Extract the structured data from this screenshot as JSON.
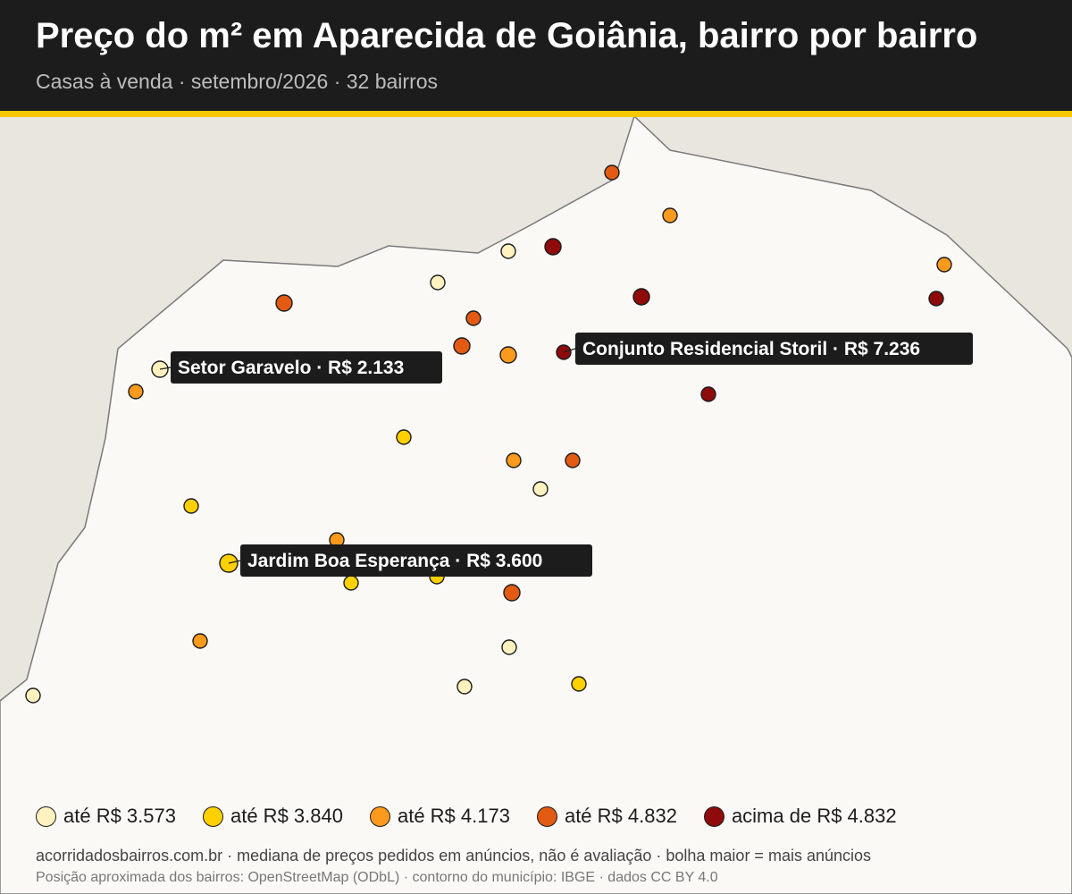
{
  "header": {
    "title": "Preço do m² em Aparecida de Goiânia, bairro por bairro",
    "subtitle": "Casas à venda · setembro/2026 · 32 bairros"
  },
  "colors": {
    "header_bg": "#1c1c1c",
    "accent": "#f5c800",
    "land_outside": "#e9e6df",
    "land_inside": "#faf9f6",
    "boundary": "#7a7a7a",
    "callout_bg": "#1c1c1c"
  },
  "legend": [
    {
      "label": "até R$ 3.573",
      "color": "#fff2bf"
    },
    {
      "label": "até R$ 3.840",
      "color": "#ffd000"
    },
    {
      "label": "até R$ 4.173",
      "color": "#fb9a1c"
    },
    {
      "label": "até R$ 4.832",
      "color": "#e35a12"
    },
    {
      "label": "acima de R$ 4.832",
      "color": "#8f0a0a"
    }
  ],
  "callouts": [
    {
      "label": "Setor Garavelo · R$ 2.133",
      "class": 0
    },
    {
      "label": "Conjunto Residencial Storil · R$ 7.236",
      "class": 4
    },
    {
      "label": "Jardim Boa Esperança · R$ 3.600",
      "class": 1
    }
  ],
  "neighborhood_classes": [
    3,
    2,
    0,
    4,
    4,
    4,
    2,
    3,
    0,
    3,
    3,
    2,
    4,
    4,
    0,
    2,
    1,
    2,
    3,
    0,
    1,
    2,
    1,
    1,
    3,
    1,
    2,
    0,
    0,
    1,
    0,
    0
  ],
  "footer": {
    "main": "acorridadosbairros.com.br · mediana de preços pedidos em anúncios, não é avaliação · bolha maior = mais anúncios",
    "credits": "Posição aproximada dos bairros: OpenStreetMap (ODbL) · contorno do município: IBGE · dados CC BY 4.0"
  }
}
